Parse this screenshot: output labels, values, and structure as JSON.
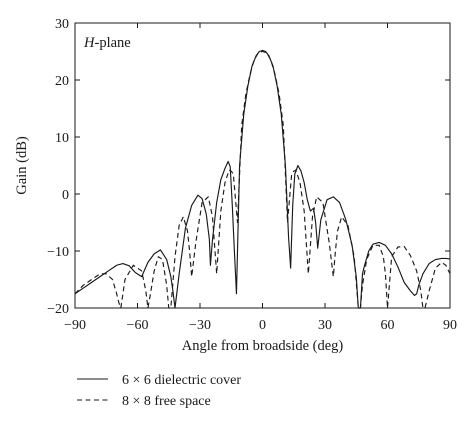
{
  "chart_data": {
    "type": "line",
    "title": "",
    "annotation": {
      "italic_part": "H",
      "rest": "-plane"
    },
    "xlabel": "Angle from broadside (deg)",
    "ylabel": "Gain (dB)",
    "xlim": [
      -90,
      90
    ],
    "ylim": [
      -20,
      30
    ],
    "xticks": [
      -90,
      -60,
      -30,
      0,
      30,
      60,
      90
    ],
    "yticks": [
      -20,
      -10,
      0,
      10,
      20,
      30
    ],
    "xtick_labels": [
      "−90",
      "−60",
      "−30",
      "0",
      "30",
      "60",
      "90"
    ],
    "ytick_labels": [
      "−20",
      "−10",
      "0",
      "10",
      "20",
      "30"
    ],
    "grid": false,
    "legend_position": "below",
    "series": [
      {
        "name": "6 × 6 dielectric cover",
        "style": "solid",
        "x": [
          -90,
          -86,
          -82,
          -78,
          -74,
          -70,
          -67,
          -64,
          -61,
          -58,
          -55,
          -52,
          -49,
          -46,
          -44,
          -43,
          -42,
          -40,
          -37,
          -34,
          -31,
          -29,
          -27,
          -25.5,
          -25,
          -24,
          -22,
          -20,
          -18,
          -16.5,
          -15.5,
          -14.5,
          -13.5,
          -12.5,
          -11,
          -9,
          -7,
          -5,
          -3,
          -1.5,
          0,
          1.5,
          3,
          5,
          7,
          9,
          11,
          12.5,
          13.5,
          14.5,
          15.5,
          17,
          18.5,
          20,
          21.5,
          23,
          24.5,
          25.5,
          26.5,
          28,
          31,
          34,
          37,
          40,
          43,
          45,
          46,
          47,
          48,
          49,
          51,
          53,
          56,
          59,
          62,
          65,
          68,
          71,
          73,
          74,
          75,
          77,
          80,
          83,
          86,
          88,
          90
        ],
        "y": [
          -17.5,
          -16.5,
          -15.5,
          -14.5,
          -13.5,
          -12.5,
          -12.2,
          -12.6,
          -13.8,
          -14.5,
          -12.0,
          -10.5,
          -9.8,
          -11.5,
          -14.5,
          -17.0,
          -20.0,
          -14.0,
          -6.0,
          -2.0,
          -0.2,
          -0.8,
          -3.5,
          -8.0,
          -12.5,
          -8.0,
          -1.5,
          2.5,
          4.5,
          5.7,
          4.8,
          -2.0,
          -10.0,
          -17.5,
          5.0,
          14.0,
          19.0,
          22.5,
          24.3,
          25.0,
          25.2,
          25.0,
          24.3,
          22.5,
          19.0,
          14.0,
          5.0,
          -7.5,
          -13.0,
          -2.0,
          3.5,
          5.0,
          4.0,
          2.0,
          -1.0,
          -3.0,
          -2.5,
          -5.0,
          -9.5,
          -4.5,
          -1.0,
          -0.5,
          -1.5,
          -4.5,
          -9.0,
          -14.5,
          -20.0,
          -20.0,
          -14.0,
          -12.5,
          -10.0,
          -8.8,
          -8.5,
          -9.0,
          -10.5,
          -12.8,
          -15.5,
          -17.0,
          -17.8,
          -17.5,
          -16.0,
          -14.0,
          -12.2,
          -11.5,
          -11.3,
          -11.3,
          -11.4
        ]
      },
      {
        "name": "8 × 8 free space",
        "style": "dashed",
        "x": [
          -90,
          -86,
          -82,
          -78,
          -75,
          -72,
          -70,
          -69,
          -68,
          -66,
          -62,
          -58,
          -56,
          -55,
          -54,
          -52,
          -50,
          -48,
          -46,
          -45,
          -44,
          -42,
          -40,
          -38,
          -36,
          -35,
          -34,
          -32,
          -29,
          -26,
          -24,
          -23,
          -22,
          -20,
          -18,
          -16,
          -15,
          -14,
          -12,
          -10,
          -8,
          -6,
          -4,
          -2,
          0,
          2,
          4,
          6,
          8,
          10,
          12,
          14,
          15,
          16,
          18,
          20,
          22,
          23,
          24,
          26,
          29,
          32,
          34,
          35,
          36,
          38,
          41,
          44,
          46,
          47,
          48,
          50,
          53,
          56,
          58,
          59,
          60,
          62,
          65,
          68,
          71,
          74,
          76,
          77,
          78,
          80,
          83,
          86,
          88,
          90
        ],
        "y": [
          -17.5,
          -16.0,
          -15.0,
          -14.0,
          -14.0,
          -15.0,
          -17.5,
          -19.0,
          -20.0,
          -15.0,
          -12.5,
          -13.5,
          -17.0,
          -20.0,
          -18.0,
          -13.5,
          -11.0,
          -11.5,
          -16.0,
          -20.0,
          -20.0,
          -11.0,
          -5.5,
          -4.0,
          -6.5,
          -10.0,
          -14.5,
          -8.5,
          -1.5,
          -0.5,
          -4.0,
          -9.0,
          -14.0,
          -3.0,
          2.0,
          4.2,
          4.0,
          3.5,
          -5.0,
          12.0,
          17.5,
          21.0,
          23.5,
          24.8,
          25.0,
          24.8,
          23.5,
          21.0,
          17.5,
          12.0,
          -5.0,
          3.5,
          4.0,
          4.2,
          2.0,
          -3.0,
          -14.0,
          -9.0,
          -4.0,
          -0.5,
          -1.5,
          -8.5,
          -14.5,
          -10.0,
          -6.5,
          -4.0,
          -5.5,
          -11.0,
          -20.0,
          -20.0,
          -16.0,
          -11.5,
          -9.0,
          -9.0,
          -11.0,
          -14.0,
          -20.0,
          -11.0,
          -9.3,
          -9.2,
          -10.8,
          -13.5,
          -17.0,
          -20.0,
          -20.0,
          -17.0,
          -13.0,
          -12.0,
          -12.5,
          -14.0
        ]
      }
    ]
  }
}
